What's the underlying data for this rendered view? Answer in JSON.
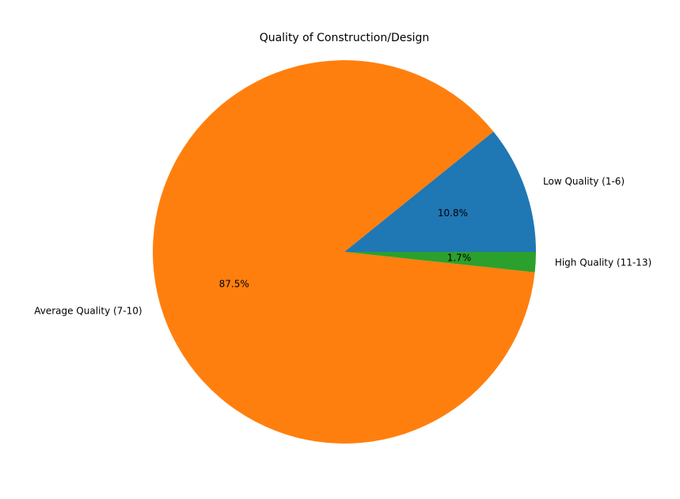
{
  "chart_data": {
    "type": "pie",
    "title": "Quality of Construction/Design",
    "start_angle_deg": 0,
    "direction": "counterclockwise",
    "slices": [
      {
        "label": "Low Quality (1-6)",
        "value": 10.8,
        "pct_text": "10.8%",
        "color": "#1f77b4"
      },
      {
        "label": "Average Quality (7-10)",
        "value": 87.5,
        "pct_text": "87.5%",
        "color": "#ff7f0e"
      },
      {
        "label": "High Quality (11-13)",
        "value": 1.7,
        "pct_text": "1.7%",
        "color": "#2ca02c"
      }
    ]
  }
}
